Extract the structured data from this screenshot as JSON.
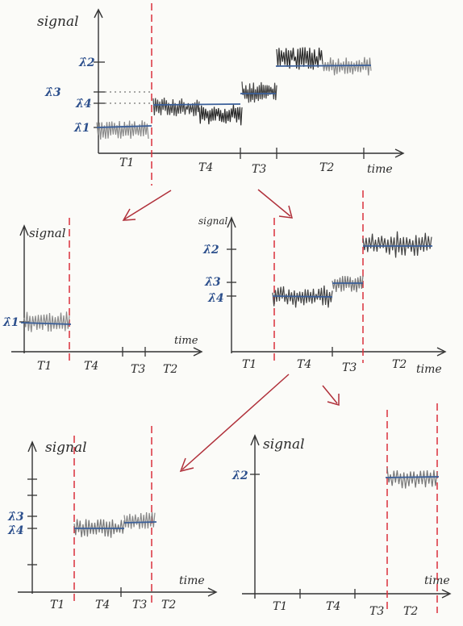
{
  "colors": {
    "ink": "#333333",
    "signal_dark": "#2b2b2b",
    "signal_light": "#8a8a8a",
    "level_line": "#3a5f9a",
    "estimate_label": "#2c4f8c",
    "changepoint": "#d9303a",
    "arrow": "#b0303a",
    "paper": "#fbfbf8"
  },
  "panels": {
    "top": {
      "axis_label_y": "signal",
      "axis_label_x": "time",
      "estimates": [
        "λ̂2",
        "λ̂3",
        "λ̂4",
        "λ̂1"
      ],
      "segments": [
        "T1",
        "T4",
        "T3",
        "T2"
      ]
    },
    "mid_left": {
      "axis_label_y": "signal",
      "axis_label_x": "time",
      "estimates": [
        "λ̂1"
      ],
      "segments": [
        "T1",
        "T4",
        "T3",
        "T2"
      ]
    },
    "mid_right": {
      "axis_label_y": "signal",
      "axis_label_x": "time",
      "estimates": [
        "λ̂2",
        "λ̂3",
        "λ̂4"
      ],
      "segments": [
        "T1",
        "T4",
        "T3",
        "T2"
      ]
    },
    "bottom_left": {
      "axis_label_y": "signal",
      "axis_label_x": "time",
      "estimates": [
        "λ̂3",
        "λ̂4"
      ],
      "segments": [
        "T1",
        "T4",
        "T3",
        "T2"
      ]
    },
    "bottom_right": {
      "axis_label_y": "signal",
      "axis_label_x": "time",
      "estimates": [
        "λ̂2"
      ],
      "segments": [
        "T1",
        "T4",
        "T3",
        "T2"
      ]
    }
  }
}
